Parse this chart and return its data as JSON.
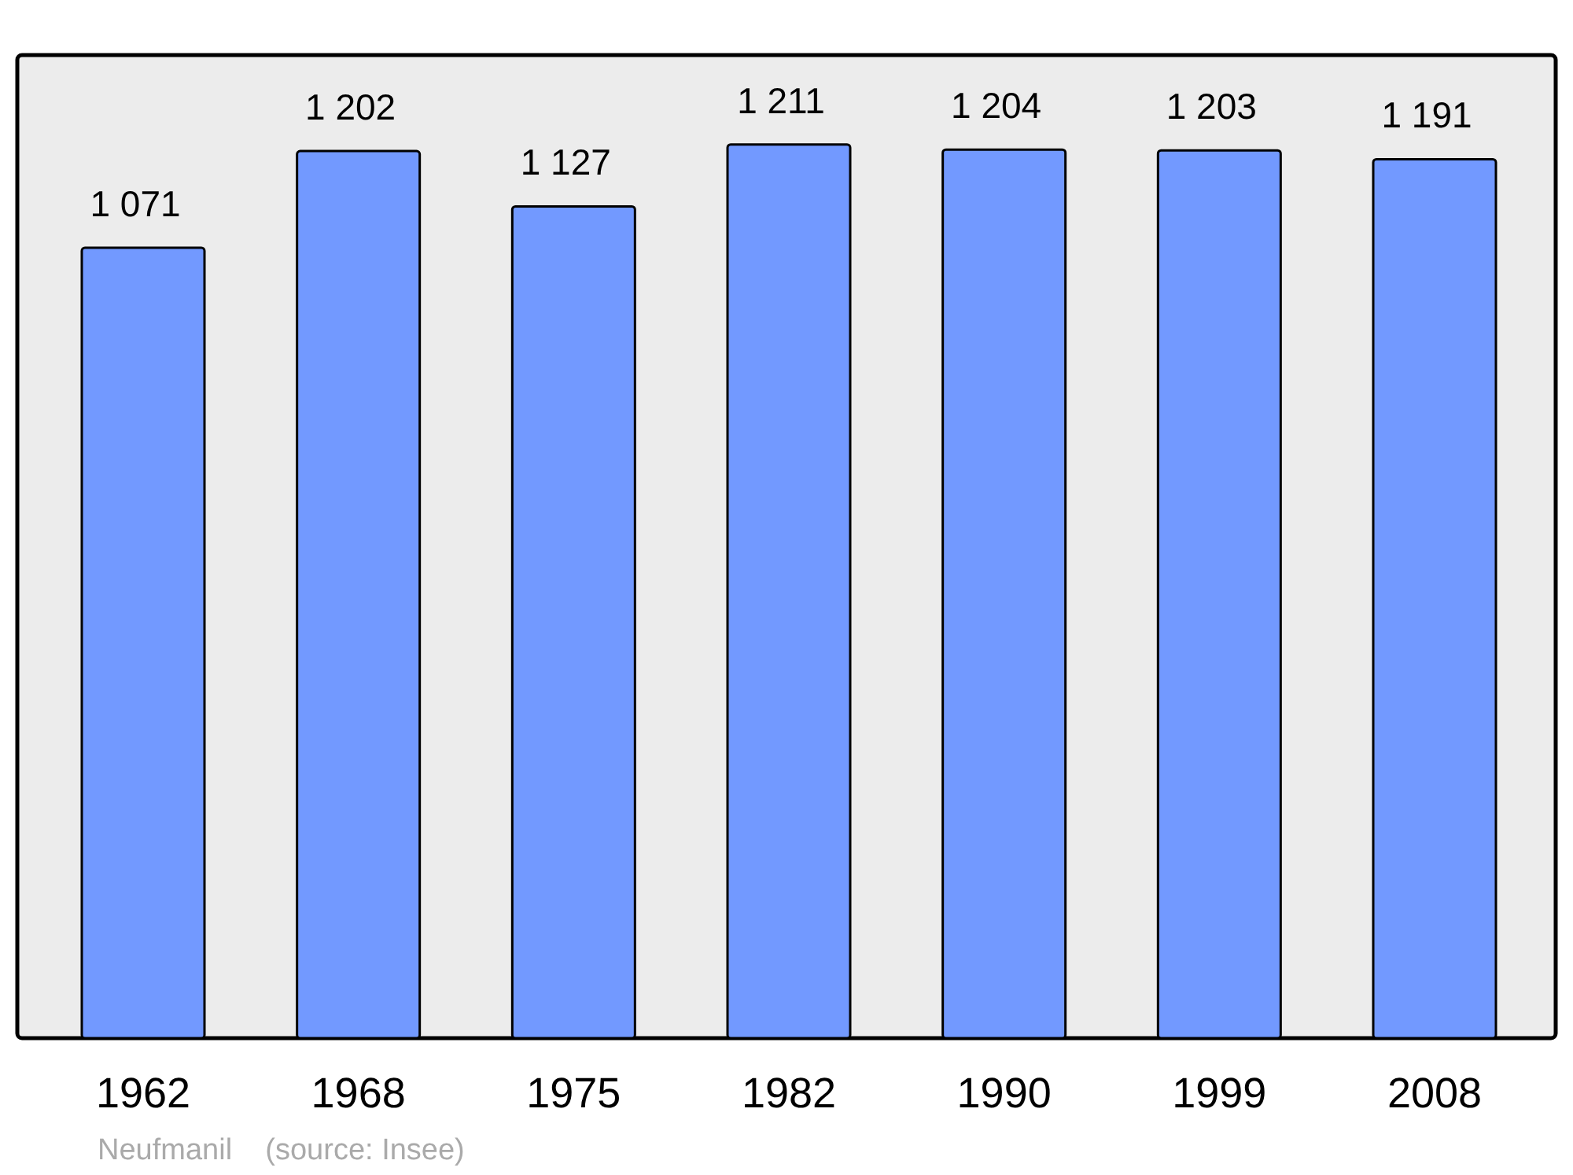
{
  "chart_data": {
    "type": "bar",
    "categories": [
      "1962",
      "1968",
      "1975",
      "1982",
      "1990",
      "1999",
      "2008"
    ],
    "values": [
      1071,
      1202,
      1127,
      1211,
      1204,
      1203,
      1191
    ],
    "value_labels": [
      "1 071",
      "1 202",
      "1 127",
      "1 211",
      "1 204",
      "1 203",
      "1 191"
    ],
    "color": "#7299ff",
    "annotations": [
      "Neufmanil    (source: Insee)"
    ]
  }
}
